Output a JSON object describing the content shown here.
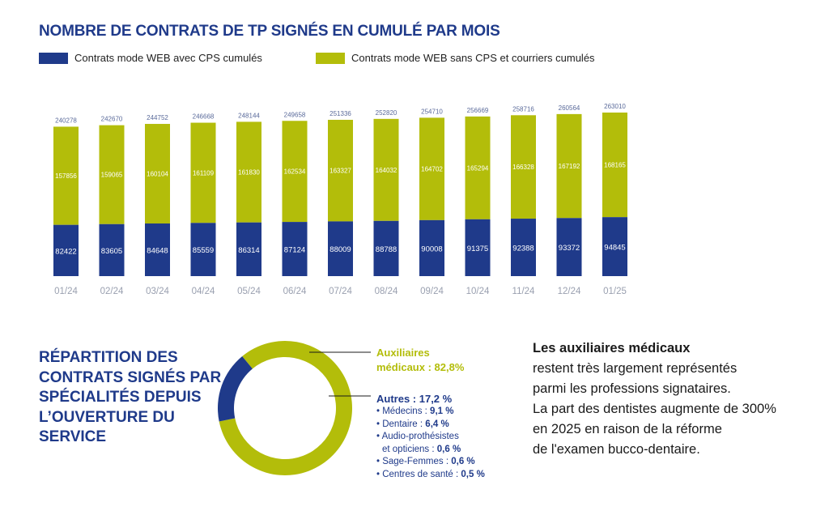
{
  "title": "NOMBRE DE CONTRATS DE TP SIGNÉS EN CUMULÉ PAR MOIS",
  "colors": {
    "navy": "#1f3a8a",
    "lime": "#b3bd0a",
    "axis_text": "#9aa0b0"
  },
  "chart_data": [
    {
      "type": "bar",
      "stacked": true,
      "categories": [
        "01/24",
        "02/24",
        "03/24",
        "04/24",
        "05/24",
        "06/24",
        "07/24",
        "08/24",
        "09/24",
        "10/24",
        "11/24",
        "12/24",
        "01/25"
      ],
      "series": [
        {
          "name": "Contrats mode WEB avec CPS cumulés",
          "color": "#1f3a8a",
          "values": [
            82422,
            83605,
            84648,
            85559,
            86314,
            87124,
            88009,
            88788,
            90008,
            91375,
            92388,
            93372,
            94845
          ]
        },
        {
          "name": "Contrats mode WEB sans CPS et courriers cumulés",
          "color": "#b3bd0a",
          "values": [
            157856,
            159065,
            160104,
            161109,
            161830,
            162534,
            163327,
            164032,
            164702,
            165294,
            166328,
            167192,
            168165
          ]
        }
      ],
      "totals": [
        240278,
        242670,
        244752,
        246668,
        248144,
        249658,
        251336,
        252820,
        254710,
        256669,
        258716,
        260564,
        263010
      ],
      "legend_position": "top-left",
      "grid": false
    },
    {
      "type": "pie",
      "donut": true,
      "title": "RÉPARTITION DES CONTRATS SIGNÉS PAR SPÉCIALITÉS DEPUIS L’OUVERTURE DU SERVICE",
      "slices": [
        {
          "label": "Auxiliaires médicaux : 82,8%",
          "value": 82.8,
          "color": "#b3bd0a"
        },
        {
          "label": "Autres : 17,2 %",
          "value": 17.2,
          "color": "#1f3a8a"
        }
      ],
      "autres_breakdown": [
        {
          "label": "Médecins :",
          "value": "9,1 %"
        },
        {
          "label": "Dentaire :",
          "value": "6,4 %"
        },
        {
          "label": "Audio-prothésistes et opticiens :",
          "value": "0,6 %"
        },
        {
          "label": "Sage-Femmes :",
          "value": "0,6 %"
        },
        {
          "label": "Centres de santé :",
          "value": "0,5 %"
        }
      ]
    }
  ],
  "labels": {
    "auxiliaires_line1": "Auxiliaires",
    "auxiliaires_line2": "médicaux : 82,8%",
    "autres": "Autres : 17,2 %"
  },
  "sublist": [
    {
      "label": "• Médecins :",
      "value": "9,1 %"
    },
    {
      "label": "• Dentaire :",
      "value": "6,4 %"
    },
    {
      "label": "• Audio-prothésistes",
      "label2": "et opticiens :",
      "value": "0,6 %"
    },
    {
      "label": "• Sage-Femmes :",
      "value": "0,6 %"
    },
    {
      "label": "• Centres de santé :",
      "value": "0,5 %"
    }
  ],
  "donut_title": "Répartition des contrats signés par spécialités depuis l’ouverture du service",
  "side_text": {
    "heading": "Les auxiliaires médicaux",
    "lines": [
      "restent très largement représentés",
      "parmi les professions signataires.",
      "La part des dentistes augmente de 300%",
      "en 2025 en raison de la réforme",
      "de l'examen bucco-dentaire."
    ]
  }
}
